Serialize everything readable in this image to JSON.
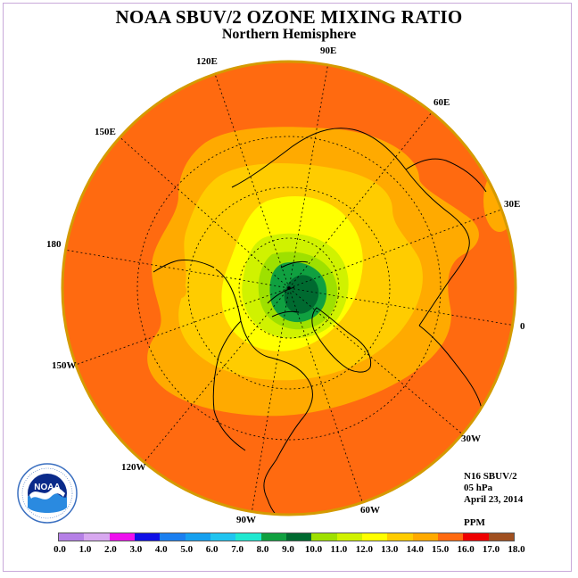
{
  "title": "NOAA SBUV/2 OZONE MIXING RATIO",
  "subtitle": "Northern Hemisphere",
  "info": {
    "line1": "N16 SBUV/2",
    "line2": "05 hPa",
    "line3": "April 23, 2014",
    "unit": "PPM"
  },
  "longitude_labels": [
    "90E",
    "60E",
    "30E",
    "0",
    "30W",
    "60W",
    "90W",
    "120W",
    "150W",
    "180",
    "150E",
    "120E"
  ],
  "logo_text": "NOAA",
  "colorbar": {
    "ticks": [
      "0.0",
      "1.0",
      "2.0",
      "3.0",
      "4.0",
      "5.0",
      "6.0",
      "7.0",
      "8.0",
      "9.0",
      "10.0",
      "11.0",
      "12.0",
      "13.0",
      "14.0",
      "15.0",
      "16.0",
      "17.0",
      "18.0"
    ],
    "colors": [
      "#b580e6",
      "#d8a8f0",
      "#ee10ee",
      "#1010e6",
      "#1b7ff0",
      "#16a0ef",
      "#20c4f0",
      "#1fe8d0",
      "#10a040",
      "#006a30",
      "#9ee000",
      "#d0f200",
      "#ffff00",
      "#ffcc00",
      "#ffaa00",
      "#ff6a10",
      "#ee0000",
      "#a05020"
    ]
  },
  "map": {
    "background_color": "#ff6a10",
    "outer_ring_color": "#ffaa00",
    "zones": {
      "orange_15_16": "#ffaa00",
      "gold_14_15": "#ffcc00",
      "yellow_13_14": "#ffff00",
      "yellowgreen_12_13": "#d0f200",
      "lime_11_12": "#9ee000",
      "green_9_10": "#10a040",
      "darkgreen_10": "#006a30"
    }
  }
}
